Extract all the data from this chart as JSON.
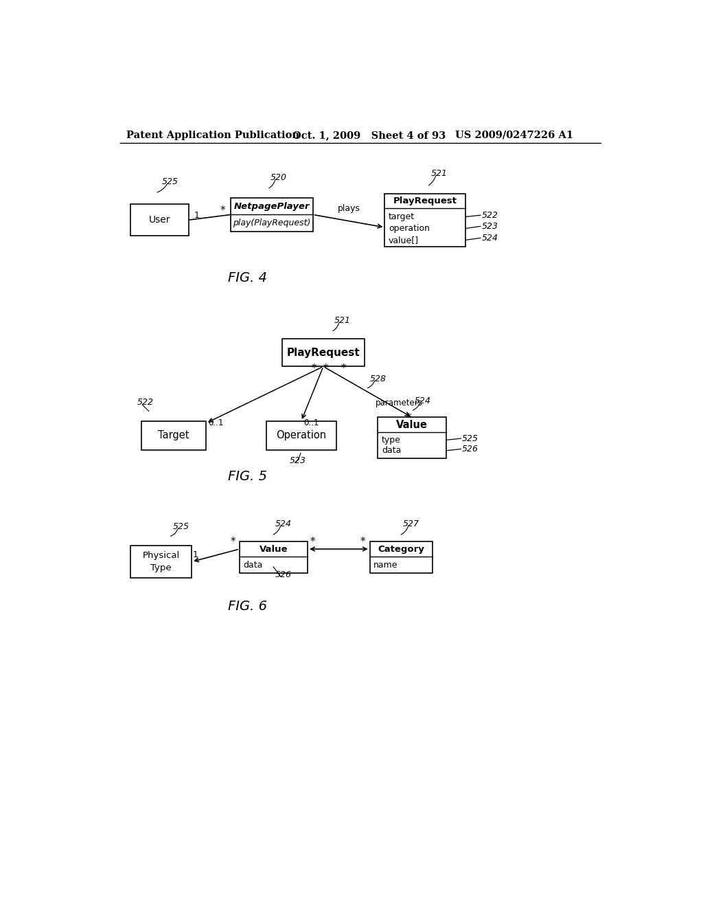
{
  "bg_color": "#ffffff",
  "header_left": "Patent Application Publication",
  "header_mid": "Oct. 1, 2009   Sheet 4 of 93",
  "header_right": "US 2009/0247226 A1"
}
